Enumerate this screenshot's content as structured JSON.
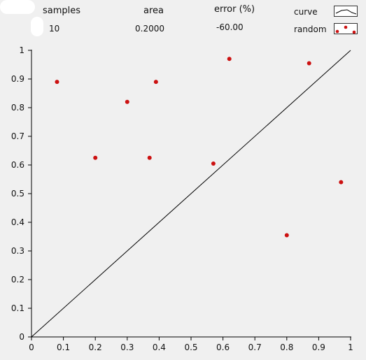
{
  "indicators": [
    {
      "label": "samples",
      "value": "10"
    },
    {
      "label": "area",
      "value": "0.2000"
    },
    {
      "label": "error (%)",
      "value": "-60.00"
    }
  ],
  "legend": {
    "curve_label": "curve",
    "random_label": "random"
  },
  "colors": {
    "curve": "#000000",
    "random": "#cc1111",
    "plot_bg": "#f0f0f0"
  },
  "chart_data": {
    "type": "scatter",
    "title": "",
    "xlabel": "",
    "ylabel": "",
    "xlim": [
      0,
      1
    ],
    "ylim": [
      0,
      1
    ],
    "grid": false,
    "legend_placement": "top-right",
    "x_ticks": [
      "0",
      "0.1",
      "0.2",
      "0.3",
      "0.4",
      "0.5",
      "0.6",
      "0.7",
      "0.8",
      "0.9",
      "1"
    ],
    "y_ticks": [
      "0",
      "0.1",
      "0.2",
      "0.3",
      "0.4",
      "0.5",
      "0.6",
      "0.7",
      "0.8",
      "0.9",
      "1"
    ],
    "series": [
      {
        "name": "curve",
        "kind": "line",
        "x": [
          0,
          1
        ],
        "y": [
          0,
          1
        ]
      },
      {
        "name": "random",
        "kind": "points",
        "x": [
          0.08,
          0.2,
          0.3,
          0.37,
          0.39,
          0.57,
          0.62,
          0.8,
          0.87,
          0.97
        ],
        "y": [
          0.89,
          0.625,
          0.82,
          0.625,
          0.89,
          0.605,
          0.97,
          0.355,
          0.955,
          0.54
        ]
      }
    ]
  }
}
